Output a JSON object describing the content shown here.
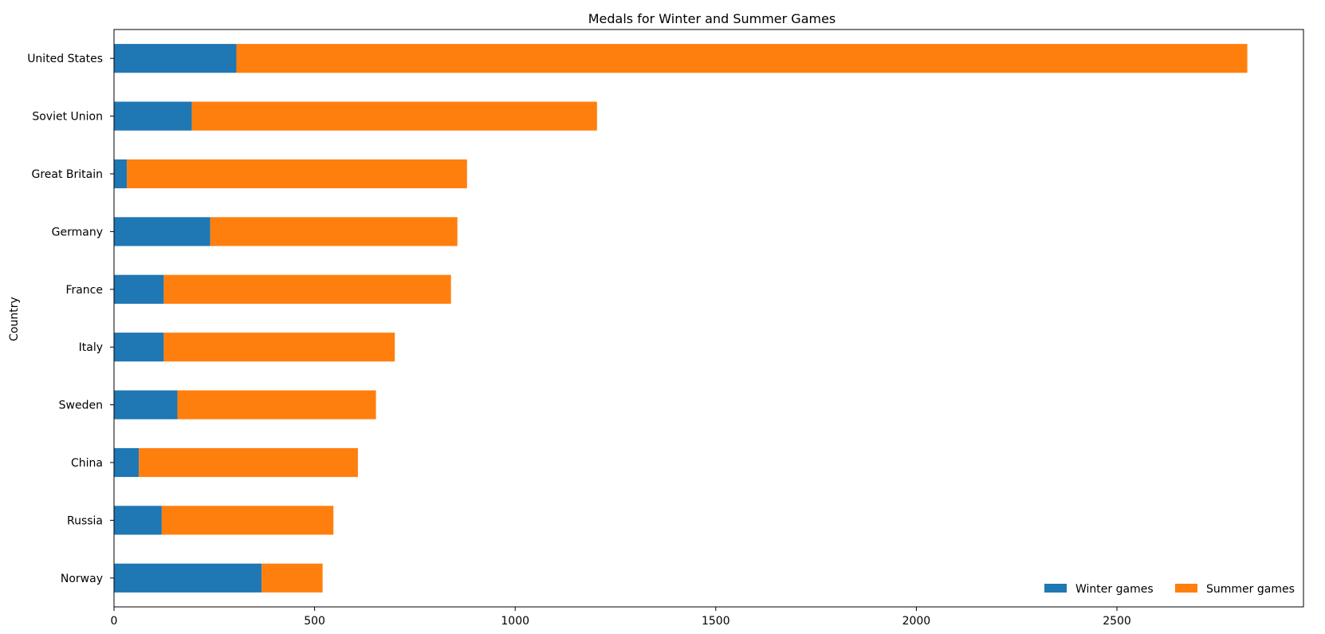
{
  "chart_data": {
    "type": "bar",
    "orientation": "horizontal",
    "stacked": true,
    "title": "Medals for Winter and Summer Games",
    "xlabel": "",
    "ylabel": "Country",
    "categories": [
      "United States",
      "Soviet Union",
      "Great Britain",
      "Germany",
      "France",
      "Italy",
      "Sweden",
      "China",
      "Russia",
      "Norway"
    ],
    "series": [
      {
        "name": "Winter games",
        "color": "#1f77b4",
        "values": [
          305,
          194,
          32,
          240,
          124,
          124,
          158,
          62,
          119,
          368
        ]
      },
      {
        "name": "Summer games",
        "color": "#ff7f0e",
        "values": [
          2520,
          1010,
          848,
          616,
          716,
          576,
          495,
          546,
          428,
          152
        ]
      }
    ],
    "xlim": [
      0,
      2965
    ],
    "xticks": [
      0,
      500,
      1000,
      1500,
      2000,
      2500
    ],
    "grid": false,
    "legend_position": "lower-right"
  }
}
